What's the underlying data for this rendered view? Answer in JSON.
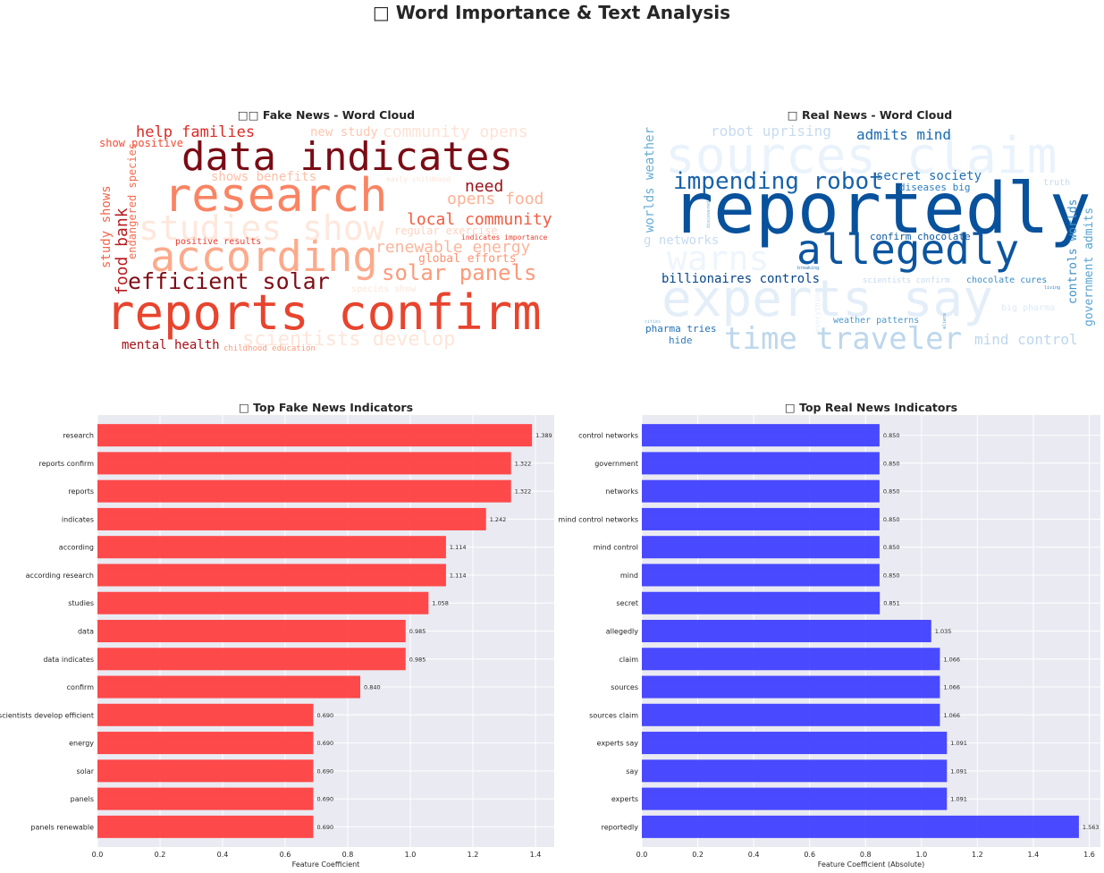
{
  "figure_title": "Word Importance & Text Analysis",
  "title_glyph": "□",
  "colors": {
    "fake_bar": "#ff4040",
    "real_bar": "#4040ff",
    "panel_bg": "#eaeaf2",
    "grid": "#ffffff"
  },
  "word_clouds": {
    "fake": {
      "title": "Fake News - Word Cloud",
      "title_glyph": "□□",
      "words": [
        {
          "text": "reports confirm",
          "color": "#e8442e"
        },
        {
          "text": "data indicates",
          "color": "#7a0c15"
        },
        {
          "text": "research",
          "color": "#f98463"
        },
        {
          "text": "according",
          "color": "#fcaa8c"
        },
        {
          "text": "studies show",
          "color": "#fee7dc"
        },
        {
          "text": "efficient solar",
          "color": "#7e0d16"
        },
        {
          "text": "solar panels",
          "color": "#fc9a7a"
        },
        {
          "text": "local community",
          "color": "#f15b40"
        },
        {
          "text": "renewable energy",
          "color": "#fcb59b"
        },
        {
          "text": "help families",
          "color": "#d92a26"
        },
        {
          "text": "community opens",
          "color": "#fee2d5"
        },
        {
          "text": "opens food",
          "color": "#fcb196"
        },
        {
          "text": "need",
          "color": "#9b1219"
        },
        {
          "text": "new study",
          "color": "#fdc8b0"
        },
        {
          "text": "shows benefits",
          "color": "#fcbfa7"
        },
        {
          "text": "show positive",
          "color": "#f24c36"
        },
        {
          "text": "food bank",
          "color": "#b81a1e"
        },
        {
          "text": "study shows",
          "color": "#f3654a"
        },
        {
          "text": "endangered species",
          "color": "#f46d52"
        },
        {
          "text": "global efforts",
          "color": "#fc9272"
        },
        {
          "text": "regular exercise",
          "color": "#fdd3c1"
        },
        {
          "text": "indicates importance",
          "color": "#e9402e"
        },
        {
          "text": "positive results",
          "color": "#ef3b2c"
        },
        {
          "text": "mental health",
          "color": "#a50f15"
        },
        {
          "text": "childhood education",
          "color": "#fc9a7a"
        },
        {
          "text": "scientists develop",
          "color": "#fee5d9"
        },
        {
          "text": "species show",
          "color": "#fee5d9"
        },
        {
          "text": "early childhood",
          "color": "#fee5d9"
        }
      ]
    },
    "real": {
      "title": "Real News - Word Cloud",
      "title_glyph": "□",
      "words": [
        {
          "text": "reportedly",
          "color": "#08519c"
        },
        {
          "text": "allegedly",
          "color": "#0b559f"
        },
        {
          "text": "sources claim",
          "color": "#eaf3fc"
        },
        {
          "text": "experts say",
          "color": "#e3eef9"
        },
        {
          "text": "time traveler",
          "color": "#bdd7ec"
        },
        {
          "text": "impending robot",
          "color": "#1861aa"
        },
        {
          "text": "warns",
          "color": "#eef5fc"
        },
        {
          "text": "robot uprising",
          "color": "#c6dbef"
        },
        {
          "text": "admits mind",
          "color": "#1c6aaf"
        },
        {
          "text": "secret society",
          "color": "#2171b5"
        },
        {
          "text": "diseases big",
          "color": "#2e7ebc"
        },
        {
          "text": "confirm chocolate",
          "color": "#0e58a2"
        },
        {
          "text": "billionaires controls",
          "color": "#08468b"
        },
        {
          "text": "chocolate cures",
          "color": "#3d8dc4"
        },
        {
          "text": "scientists confirm",
          "color": "#c6dbef"
        },
        {
          "text": "weather patterns",
          "color": "#4a98c9"
        },
        {
          "text": "pharma tries",
          "color": "#2171b5"
        },
        {
          "text": "hide",
          "color": "#2f7fbc"
        },
        {
          "text": "mind control",
          "color": "#bdd7ec"
        },
        {
          "text": "worlds weather",
          "color": "#6aaed6"
        },
        {
          "text": "g networks",
          "color": "#c6dbef"
        },
        {
          "text": "controls worlds",
          "color": "#4292c6"
        },
        {
          "text": "government admits",
          "color": "#5ba3d0"
        },
        {
          "text": "truth",
          "color": "#c6dbef"
        },
        {
          "text": "big pharma",
          "color": "#dbe9f6"
        },
        {
          "text": "discovered",
          "color": "#6aaed6"
        },
        {
          "text": "breaking",
          "color": "#2c7bb6"
        },
        {
          "text": "living",
          "color": "#3787c0"
        },
        {
          "text": "aliens",
          "color": "#4a98c9"
        },
        {
          "text": "cities",
          "color": "#7fb9da"
        },
        {
          "text": "everything",
          "color": "#e3eef9"
        }
      ]
    }
  },
  "chart_data": [
    {
      "type": "bar",
      "orientation": "horizontal",
      "title": "Top Fake News Indicators",
      "title_glyph": "□",
      "xlabel": "Feature Coefficient",
      "ylabel": "",
      "xlim": [
        0,
        1.46
      ],
      "xticks": [
        0.0,
        0.2,
        0.4,
        0.6,
        0.8,
        1.0,
        1.2,
        1.4
      ],
      "xtick_labels": [
        "0.0",
        "0.2",
        "0.4",
        "0.6",
        "0.8",
        "1.0",
        "1.2",
        "1.4"
      ],
      "categories": [
        "research",
        "reports confirm",
        "reports",
        "indicates",
        "according",
        "according research",
        "studies",
        "data",
        "data indicates",
        "confirm",
        "scientists develop efficient",
        "energy",
        "solar",
        "panels",
        "panels renewable"
      ],
      "values": [
        1.389,
        1.322,
        1.322,
        1.242,
        1.114,
        1.114,
        1.058,
        0.985,
        0.985,
        0.84,
        0.69,
        0.69,
        0.69,
        0.69,
        0.69
      ],
      "value_labels": [
        "1.389",
        "1.322",
        "1.322",
        "1.242",
        "1.114",
        "1.114",
        "1.058",
        "0.985",
        "0.985",
        "0.840",
        "0.690",
        "0.690",
        "0.690",
        "0.690",
        "0.690"
      ],
      "grid": true
    },
    {
      "type": "bar",
      "orientation": "horizontal",
      "title": "Top Real News Indicators",
      "title_glyph": "□",
      "xlabel": "Feature Coefficient (Absolute)",
      "ylabel": "",
      "xlim": [
        0,
        1.64
      ],
      "xticks": [
        0.0,
        0.2,
        0.4,
        0.6,
        0.8,
        1.0,
        1.2,
        1.4,
        1.6
      ],
      "xtick_labels": [
        "0.0",
        "0.2",
        "0.4",
        "0.6",
        "0.8",
        "1.0",
        "1.2",
        "1.4",
        "1.6"
      ],
      "categories": [
        "control networks",
        "government",
        "networks",
        "mind control networks",
        "mind control",
        "mind",
        "secret",
        "allegedly",
        "claim",
        "sources",
        "sources claim",
        "experts say",
        "say",
        "experts",
        "reportedly"
      ],
      "values": [
        0.85,
        0.85,
        0.85,
        0.85,
        0.85,
        0.85,
        0.851,
        1.035,
        1.066,
        1.066,
        1.066,
        1.091,
        1.091,
        1.091,
        1.563
      ],
      "value_labels": [
        "0.850",
        "0.850",
        "0.850",
        "0.850",
        "0.850",
        "0.850",
        "0.851",
        "1.035",
        "1.066",
        "1.066",
        "1.066",
        "1.091",
        "1.091",
        "1.091",
        "1.563"
      ],
      "grid": true
    }
  ]
}
